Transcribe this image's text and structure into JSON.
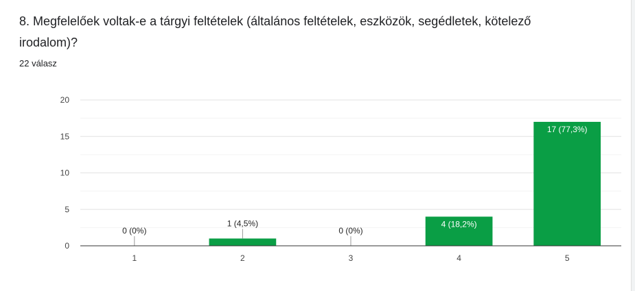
{
  "question": {
    "title": "8. Megfelelőek voltak-e a tárgyi feltételek (általános feltételek, eszközök, segédletek, kötelező irodalom)?",
    "response_count": "22 válasz"
  },
  "chart_data": {
    "type": "bar",
    "categories": [
      "1",
      "2",
      "3",
      "4",
      "5"
    ],
    "values": [
      0,
      1,
      0,
      4,
      17
    ],
    "data_labels": [
      "0 (0%)",
      "1 (4,5%)",
      "0 (0%)",
      "4 (18,2%)",
      "17 (77,3%)"
    ],
    "y_ticks": [
      0,
      5,
      10,
      15,
      20
    ],
    "ylim": [
      0,
      20
    ],
    "bar_color": "#0a9e45",
    "grid": true
  }
}
